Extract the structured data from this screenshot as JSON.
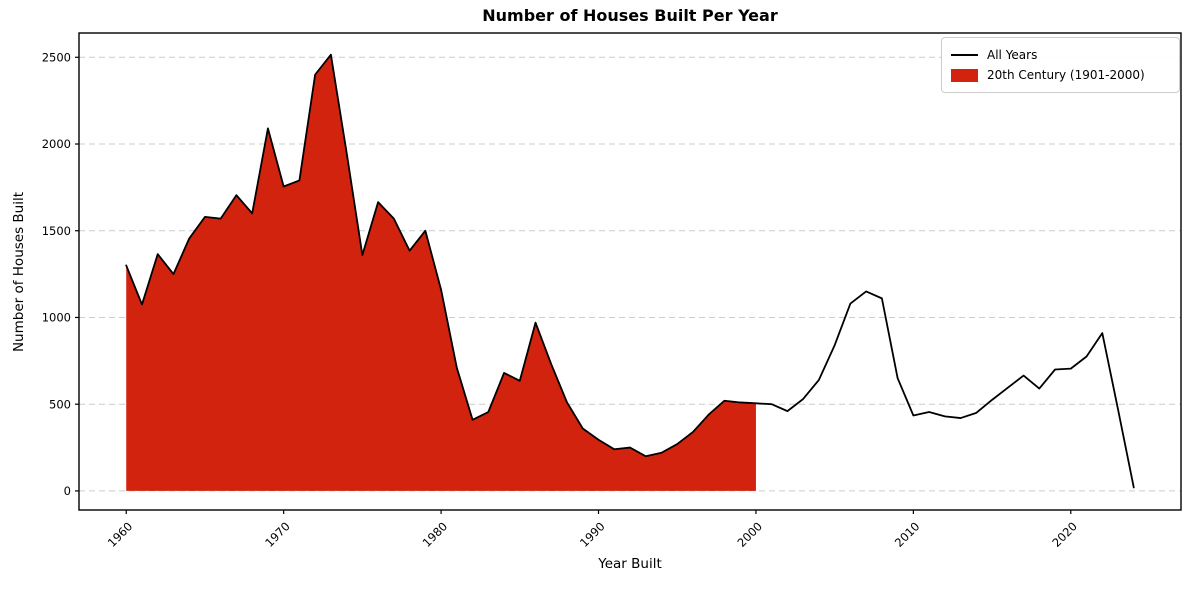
{
  "title": "Number of Houses Built Per Year",
  "legend": {
    "items": [
      {
        "label": "All Years",
        "swatch": "line",
        "color": "#000000"
      },
      {
        "label": "20th Century (1901-2000)",
        "swatch": "patch",
        "color": "#d2230e"
      }
    ]
  },
  "colors": {
    "line": "#000000",
    "fill": "#d2230e",
    "grid": "#cccccc",
    "spine": "#000000",
    "background": "#ffffff"
  },
  "chart_data": {
    "type": "area",
    "title": "Number of Houses Built Per Year",
    "xlabel": "Year Built",
    "ylabel": "Number of Houses Built",
    "x": [
      1960,
      1961,
      1962,
      1963,
      1964,
      1965,
      1966,
      1967,
      1968,
      1969,
      1970,
      1971,
      1972,
      1973,
      1974,
      1975,
      1976,
      1977,
      1978,
      1979,
      1980,
      1981,
      1982,
      1983,
      1984,
      1985,
      1986,
      1987,
      1988,
      1989,
      1990,
      1991,
      1992,
      1993,
      1994,
      1995,
      1996,
      1997,
      1998,
      1999,
      2000,
      2001,
      2002,
      2003,
      2004,
      2005,
      2006,
      2007,
      2008,
      2009,
      2010,
      2011,
      2012,
      2013,
      2014,
      2015,
      2016,
      2017,
      2018,
      2019,
      2020,
      2021,
      2022,
      2023,
      2024
    ],
    "series": [
      {
        "name": "All Years",
        "values": [
          1300,
          1075,
          1365,
          1250,
          1455,
          1580,
          1570,
          1705,
          1600,
          2090,
          1755,
          1790,
          2400,
          2515,
          1950,
          1360,
          1665,
          1570,
          1385,
          1500,
          1160,
          710,
          410,
          455,
          680,
          635,
          970,
          730,
          510,
          360,
          295,
          240,
          250,
          200,
          220,
          270,
          340,
          440,
          520,
          510,
          505,
          500,
          460,
          530,
          640,
          840,
          1080,
          1150,
          1110,
          650,
          435,
          455,
          430,
          420,
          450,
          525,
          595,
          665,
          590,
          700,
          705,
          775,
          910,
          470,
          20
        ]
      }
    ],
    "highlight": {
      "name": "20th Century (1901-2000)",
      "x_start": 1960,
      "x_end": 2000,
      "baseline": 0,
      "fill": "#d2230e"
    },
    "xticks": [
      1960,
      1970,
      1980,
      1990,
      2000,
      2010,
      2020
    ],
    "yticks": [
      0,
      500,
      1000,
      1500,
      2000,
      2500
    ],
    "xlim": [
      1957,
      2027
    ],
    "ylim": [
      -110,
      2640
    ],
    "grid": "horizontal-dashed",
    "legend_position": "upper right"
  }
}
